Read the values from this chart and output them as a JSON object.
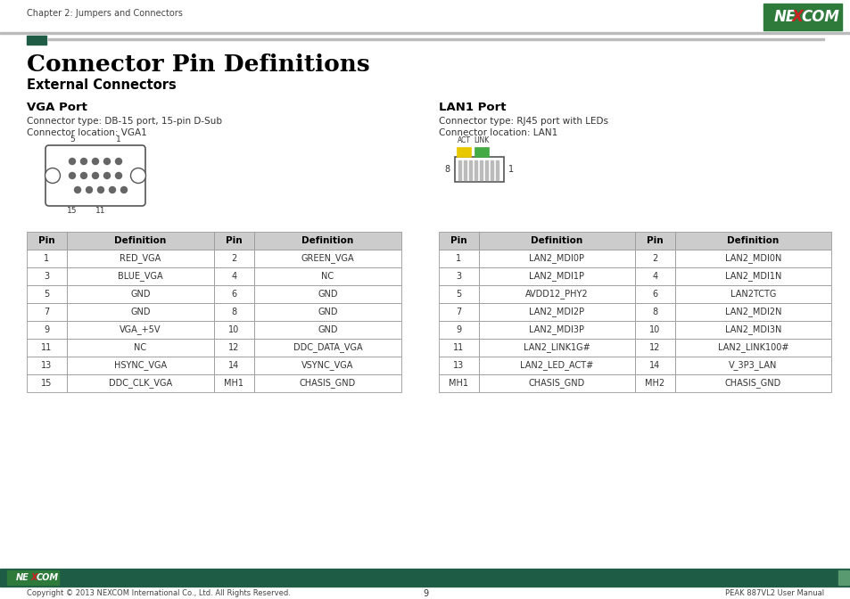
{
  "page_title": "Chapter 2: Jumpers and Connectors",
  "main_title": "Connector Pin Definitions",
  "sub_title": "External Connectors",
  "vga_title": "VGA Port",
  "vga_desc1": "Connector type: DB-15 port, 15-pin D-Sub",
  "vga_desc2": "Connector location: VGA1",
  "lan_title": "LAN1 Port",
  "lan_desc1": "Connector type: RJ45 port with LEDs",
  "lan_desc2": "Connector location: LAN1",
  "vga_table": {
    "headers": [
      "Pin",
      "Definition",
      "Pin",
      "Definition"
    ],
    "rows": [
      [
        "1",
        "RED_VGA",
        "2",
        "GREEN_VGA"
      ],
      [
        "3",
        "BLUE_VGA",
        "4",
        "NC"
      ],
      [
        "5",
        "GND",
        "6",
        "GND"
      ],
      [
        "7",
        "GND",
        "8",
        "GND"
      ],
      [
        "9",
        "VGA_+5V",
        "10",
        "GND"
      ],
      [
        "11",
        "NC",
        "12",
        "DDC_DATA_VGA"
      ],
      [
        "13",
        "HSYNC_VGA",
        "14",
        "VSYNC_VGA"
      ],
      [
        "15",
        "DDC_CLK_VGA",
        "MH1",
        "CHASIS_GND"
      ]
    ]
  },
  "lan_table": {
    "headers": [
      "Pin",
      "Definition",
      "Pin",
      "Definition"
    ],
    "rows": [
      [
        "1",
        "LAN2_MDI0P",
        "2",
        "LAN2_MDI0N"
      ],
      [
        "3",
        "LAN2_MDI1P",
        "4",
        "LAN2_MDI1N"
      ],
      [
        "5",
        "AVDD12_PHY2",
        "6",
        "LAN2TCTG"
      ],
      [
        "7",
        "LAN2_MDI2P",
        "8",
        "LAN2_MDI2N"
      ],
      [
        "9",
        "LAN2_MDI3P",
        "10",
        "LAN2_MDI3N"
      ],
      [
        "11",
        "LAN2_LINK1G#",
        "12",
        "LAN2_LINK100#"
      ],
      [
        "13",
        "LAN2_LED_ACT#",
        "14",
        "V_3P3_LAN"
      ],
      [
        "MH1",
        "CHASIS_GND",
        "MH2",
        "CHASIS_GND"
      ]
    ]
  },
  "dark_green": "#1e5c45",
  "nexcom_logo_green": "#2d7a3a",
  "table_header_bg": "#cccccc",
  "table_border_color": "#999999",
  "footer_text": "Copyright © 2013 NEXCOM International Co., Ltd. All Rights Reserved.",
  "footer_page": "9",
  "footer_right": "PEAK 887VL2 User Manual",
  "bg_color": "#ffffff",
  "accent_green": "#3a7a55",
  "line_gray": "#bbbbbb"
}
